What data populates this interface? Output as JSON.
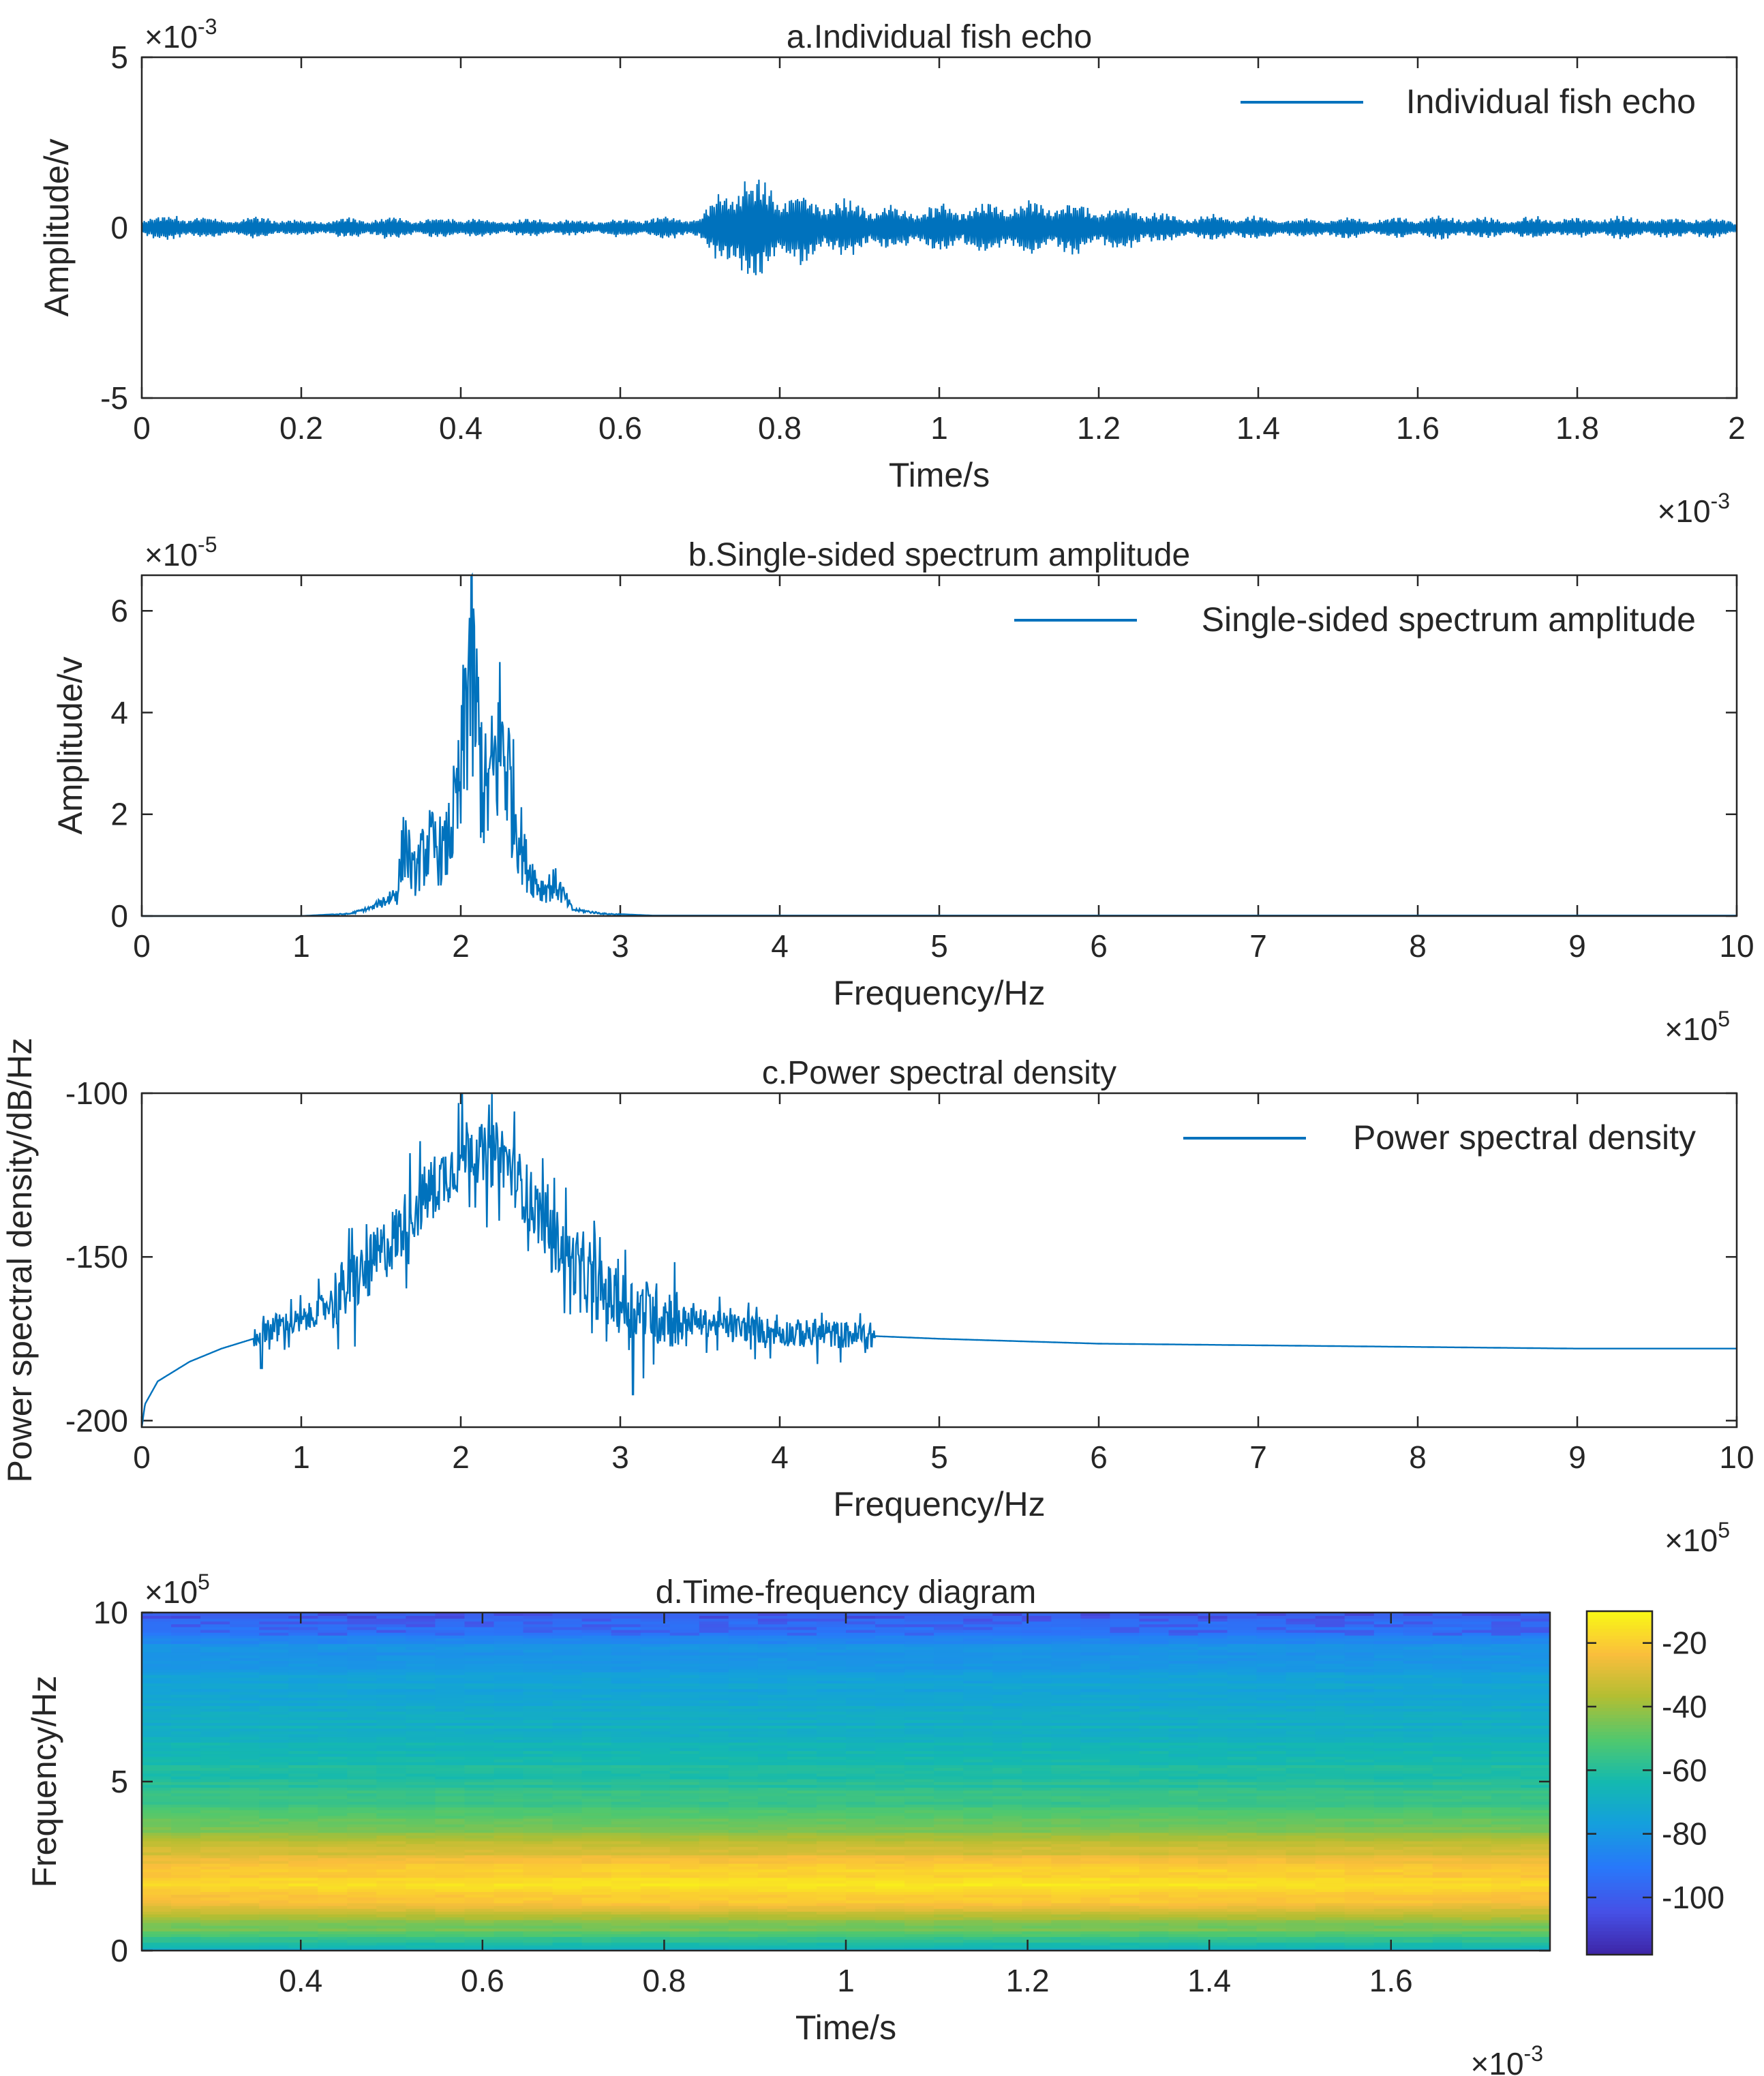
{
  "colors": {
    "line": "#0072BD",
    "axes": "#262626",
    "background": "#ffffff"
  },
  "chart_data": [
    {
      "id": "a",
      "type": "line",
      "title": "a.Individual fish echo",
      "xlabel": "Time/s",
      "ylabel": "Amplitude/v",
      "x_exponent": "-3",
      "y_exponent": "-3",
      "exp_prefix": "×10",
      "xlim": [
        0,
        2
      ],
      "ylim": [
        -5,
        5
      ],
      "xticks": [
        0,
        0.2,
        0.4,
        0.6,
        0.8,
        1,
        1.2,
        1.4,
        1.6,
        1.8,
        2
      ],
      "xtick_labels": [
        "0",
        "0.2",
        "0.4",
        "0.6",
        "0.8",
        "1",
        "1.2",
        "1.4",
        "1.6",
        "1.8",
        "2"
      ],
      "yticks": [
        -5,
        0,
        5
      ],
      "ytick_labels": [
        "-5",
        "0",
        "5"
      ],
      "legend": "Individual fish echo",
      "envelope": {
        "x": [
          0,
          0.05,
          0.1,
          0.15,
          0.2,
          0.25,
          0.3,
          0.35,
          0.4,
          0.45,
          0.5,
          0.55,
          0.6,
          0.65,
          0.7,
          0.72,
          0.74,
          0.76,
          0.8,
          0.85,
          0.9,
          0.95,
          1.0,
          1.05,
          1.1,
          1.15,
          1.2,
          1.25,
          1.28,
          1.3,
          1.35,
          1.4,
          1.45,
          1.5,
          1.55,
          1.6,
          1.65,
          1.7,
          1.75,
          1.8,
          1.85,
          1.9,
          1.95,
          2.0
        ],
        "amplitude": [
          0.3,
          0.35,
          0.25,
          0.3,
          0.2,
          0.25,
          0.3,
          0.25,
          0.3,
          0.2,
          0.25,
          0.2,
          0.25,
          0.3,
          0.3,
          0.8,
          1.35,
          1.4,
          1.1,
          0.8,
          0.7,
          0.55,
          0.6,
          0.65,
          0.7,
          0.75,
          0.6,
          0.55,
          0.4,
          0.3,
          0.35,
          0.3,
          0.25,
          0.3,
          0.25,
          0.3,
          0.3,
          0.25,
          0.3,
          0.25,
          0.3,
          0.25,
          0.3,
          0.2
        ]
      }
    },
    {
      "id": "b",
      "type": "line",
      "title": "b.Single-sided spectrum amplitude",
      "xlabel": "Frequency/Hz",
      "ylabel": "Amplitude/v",
      "x_exponent": "5",
      "y_exponent": "-5",
      "exp_prefix": "×10",
      "xlim": [
        0,
        10
      ],
      "ylim": [
        0,
        6.7
      ],
      "xticks": [
        0,
        1,
        2,
        3,
        4,
        5,
        6,
        7,
        8,
        9,
        10
      ],
      "xtick_labels": [
        "0",
        "1",
        "2",
        "3",
        "4",
        "5",
        "6",
        "7",
        "8",
        "9",
        "10"
      ],
      "yticks": [
        0,
        2,
        4,
        6
      ],
      "ytick_labels": [
        "0",
        "2",
        "4",
        "6"
      ],
      "legend": "Single-sided spectrum amplitude",
      "envelope": {
        "x": [
          0,
          1.0,
          1.3,
          1.45,
          1.6,
          1.65,
          1.7,
          1.8,
          1.9,
          2.0,
          2.05,
          2.1,
          2.15,
          2.2,
          2.25,
          2.3,
          2.4,
          2.5,
          2.6,
          2.7,
          2.9,
          3.2,
          10
        ],
        "y": [
          0,
          0,
          0.05,
          0.2,
          0.6,
          2.0,
          1.0,
          1.8,
          1.6,
          3.2,
          6.6,
          4.9,
          3.0,
          3.5,
          4.6,
          3.6,
          1.4,
          0.7,
          0.8,
          0.15,
          0.05,
          0.01,
          0.01
        ]
      }
    },
    {
      "id": "c",
      "type": "line",
      "title": "c.Power spectral density",
      "xlabel": "Frequency/Hz",
      "ylabel": "Power spectral density/dB/Hz",
      "x_exponent": "5",
      "exp_prefix": "×10",
      "xlim": [
        0,
        10
      ],
      "ylim": [
        -202,
        -100
      ],
      "xticks": [
        0,
        1,
        2,
        3,
        4,
        5,
        6,
        7,
        8,
        9,
        10
      ],
      "xtick_labels": [
        "0",
        "1",
        "2",
        "3",
        "4",
        "5",
        "6",
        "7",
        "8",
        "9",
        "10"
      ],
      "yticks": [
        -200,
        -150,
        -100
      ],
      "ytick_labels": [
        "-200",
        "-150",
        "-100"
      ],
      "legend": "Power spectral density",
      "envelope": {
        "x": [
          0,
          0.02,
          0.1,
          0.3,
          0.5,
          0.7,
          0.75,
          1.0,
          1.2,
          1.4,
          1.6,
          1.8,
          2.0,
          2.05,
          2.15,
          2.25,
          2.4,
          2.6,
          2.8,
          3.0,
          3.2,
          3.5,
          4.0,
          4.5,
          5.0,
          6.0,
          7.0,
          8.0,
          9.0,
          10.0
        ],
        "y": [
          -202,
          -195,
          -188,
          -182,
          -178,
          -175,
          -172,
          -170,
          -163,
          -155,
          -143,
          -130,
          -120,
          -115,
          -120,
          -118,
          -130,
          -145,
          -158,
          -164,
          -167,
          -170,
          -173,
          -174,
          -175,
          -176.5,
          -177,
          -177.5,
          -178,
          -178
        ]
      }
    },
    {
      "id": "d",
      "type": "heatmap",
      "title": "d.Time-frequency diagram",
      "xlabel": "Time/s",
      "ylabel": "Frequency/Hz",
      "x_exponent": "-3",
      "y_exponent": "5",
      "exp_prefix": "×10",
      "xlim": [
        0.225,
        1.775
      ],
      "ylim": [
        0,
        10
      ],
      "xticks": [
        0.4,
        0.6,
        0.8,
        1,
        1.2,
        1.4,
        1.6
      ],
      "xtick_labels": [
        "0.4",
        "0.6",
        "0.8",
        "1",
        "1.2",
        "1.4",
        "1.6"
      ],
      "yticks": [
        0,
        5,
        10
      ],
      "ytick_labels": [
        "0",
        "5",
        "10"
      ],
      "colorbar": {
        "range": [
          -118,
          -10
        ],
        "ticks": [
          -20,
          -40,
          -60,
          -80,
          -100
        ],
        "tick_labels": [
          "-20",
          "-40",
          "-60",
          "-80",
          "-100"
        ]
      },
      "frequency_profile_db": {
        "f": [
          0,
          0.3,
          0.6,
          1.0,
          1.5,
          2.0,
          2.5,
          3.0,
          3.5,
          4.0,
          5.0,
          6.0,
          7.0,
          8.0,
          9.0,
          9.5,
          10.0
        ],
        "db": [
          -72,
          -58,
          -48,
          -38,
          -24,
          -18,
          -24,
          -32,
          -42,
          -52,
          -60,
          -66,
          -71,
          -76,
          -82,
          -94,
          -98
        ]
      }
    }
  ]
}
